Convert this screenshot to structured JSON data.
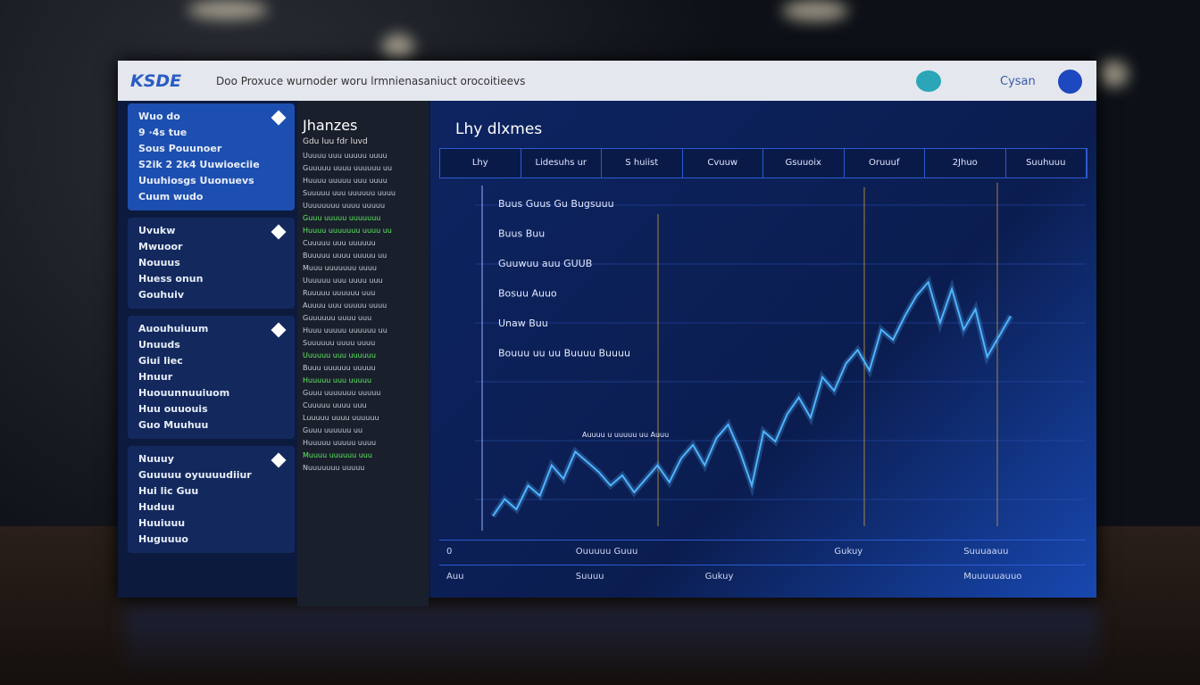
{
  "header": {
    "logo": "KSDE",
    "title": "Doo Proxuce wurnoder woru lrmnienasaniuct orocoitieevs",
    "user": "Cysan"
  },
  "sidebar": {
    "sections": [
      {
        "items": [
          "Wuo do",
          "9 ·4s tue",
          "Sous Pouunoer",
          "S2ik 2 2k4 Uuwioeciie",
          "Uuuhiosgs Uuonuevs",
          "Cuum wudo"
        ]
      },
      {
        "items": [
          "Uvukw",
          "Mwuoor",
          "Nouuus",
          "Huess onun",
          "Gouhuiv"
        ]
      },
      {
        "items": [
          "Auouhuiuum",
          "Unuuds",
          "Giui liec",
          "Hnuur",
          "Huouunnuuiuom",
          "Huu ouuouis",
          "Guo Muuhuu"
        ]
      },
      {
        "items": [
          "Nuuuy",
          "Guuuuu oyuuuudiiur",
          "Hui lic Guu",
          "Huduu",
          "Huuiuuu",
          "Huguuuo"
        ]
      }
    ]
  },
  "feed": {
    "title": "Jhanzes",
    "subtitle": "Gdu luu fdr luvd",
    "rows": [
      {
        "text": "Uuuuu uuu uuuuu uuuu",
        "highlight": false
      },
      {
        "text": "Guuuuu uuuu uuuuuu uu",
        "highlight": false
      },
      {
        "text": "Huuuu uuuuu uuu uuuu",
        "highlight": false
      },
      {
        "text": "Suuuuu uuu uuuuuu uuuu",
        "highlight": false
      },
      {
        "text": "Uuuuuuuu uuuu uuuuu",
        "highlight": false
      },
      {
        "text": "Guuu uuuuu uuuuuuu",
        "highlight": true
      },
      {
        "text": "Huuuu uuuuuuu uuuu uu",
        "highlight": true
      },
      {
        "text": "Cuuuuu uuu uuuuuu",
        "highlight": false
      },
      {
        "text": "Buuuuu uuuu uuuuu uu",
        "highlight": false
      },
      {
        "text": "Muuu uuuuuuu uuuu",
        "highlight": false
      },
      {
        "text": "Uuuuuu uuu uuuu uuu",
        "highlight": false
      },
      {
        "text": "Ruuuuu uuuuuu uuu",
        "highlight": false
      },
      {
        "text": "Auuuu uuu uuuuu uuuu",
        "highlight": false
      },
      {
        "text": "Guuuuuu uuuu uuu",
        "highlight": false
      },
      {
        "text": "Huuu uuuuu uuuuuu uu",
        "highlight": false
      },
      {
        "text": "Suuuuuu uuuu uuuu",
        "highlight": false
      },
      {
        "text": "Uuuuuu uuu uuuuuu",
        "highlight": true
      },
      {
        "text": "Buuu uuuuuu uuuuu",
        "highlight": false
      },
      {
        "text": "Huuuuu uuu uuuuu",
        "highlight": true
      },
      {
        "text": "Guuu uuuuuuu uuuuu",
        "highlight": false
      },
      {
        "text": "Cuuuuu uuuu uuu",
        "highlight": false
      },
      {
        "text": "Luuuuu uuuu uuuuuu",
        "highlight": false
      },
      {
        "text": "Guuu uuuuuu uu",
        "highlight": false
      },
      {
        "text": "Huuuuu uuuuu uuuu",
        "highlight": false
      },
      {
        "text": "Muuuu uuuuuu uuu",
        "highlight": true
      },
      {
        "text": "Nuuuuuuu uuuuu",
        "highlight": false
      }
    ]
  },
  "chart": {
    "title": "Lhy dlxmes",
    "tabs": [
      "Lhy",
      "Lidesuhs ur",
      "S huiist",
      "Cvuuw",
      "Gsuuoix",
      "Oruuuf",
      "2Jhuo",
      "Suuhuuu"
    ],
    "type": "line",
    "color": "#4fb4ff",
    "ylim": [
      0,
      100
    ],
    "values": [
      3,
      8,
      5,
      12,
      9,
      18,
      14,
      22,
      19,
      16,
      12,
      15,
      10,
      14,
      18,
      13,
      20,
      24,
      18,
      26,
      30,
      22,
      12,
      28,
      25,
      33,
      38,
      32,
      44,
      40,
      48,
      52,
      46,
      58,
      55,
      62,
      68,
      72,
      60,
      70,
      58,
      64,
      50,
      56,
      62
    ],
    "annotations": [
      "Buus Guus Gu Bugsuuu",
      "Buus Buu",
      "Guuwuu auu GUUB",
      "Bosuu Auuo",
      "Unaw Buu",
      "Bouuu uu uu Buuuu Buuuu"
    ],
    "note": "Auuuu u uuuuu uu Auuu",
    "footer": [
      [
        "0",
        "Ouuuuu Guuu",
        "",
        "Gukuy",
        "Suuuaauu"
      ],
      [
        "Auu",
        "Suuuu",
        "Gukuy",
        "",
        "Muuuuuauuo"
      ]
    ]
  }
}
